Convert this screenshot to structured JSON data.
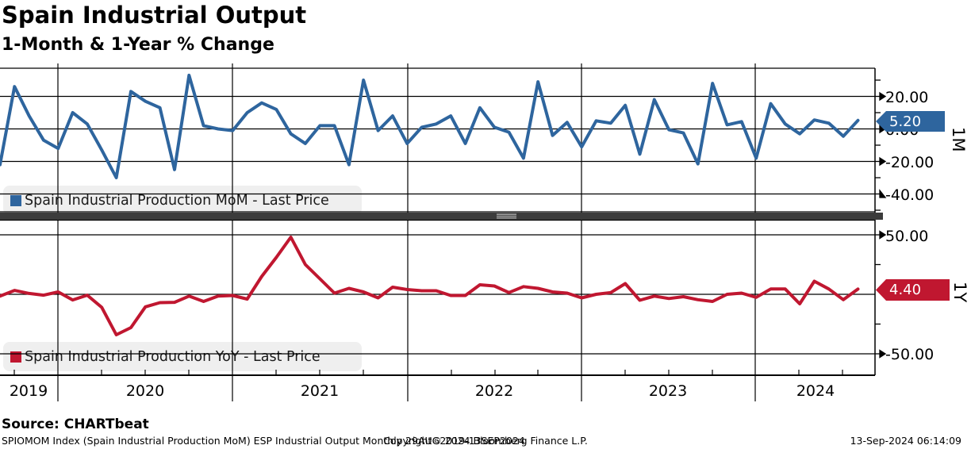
{
  "header": {
    "title": "Spain Industrial Output",
    "subtitle": "1-Month & 1-Year % Change"
  },
  "panels": {
    "top": {
      "axis_tag": "1M",
      "last_price_badge": "5.20",
      "legend": "Spain Industrial Production MoM - Last Price",
      "color": "#2e659e",
      "yticks": {
        "t0": "20.00",
        "t1": "0.00",
        "t2": "-20.00",
        "t3": "-40.00"
      }
    },
    "bottom": {
      "axis_tag": "1Y",
      "last_price_badge": "4.40",
      "legend": "Spain Industrial Production YoY - Last Price",
      "color": "#c01730",
      "yticks": {
        "t0": "50.00",
        "t1": "-50.00"
      }
    }
  },
  "xaxis": {
    "years": {
      "y2019": "2019",
      "y2020": "2020",
      "y2021": "2021",
      "y2022": "2022",
      "y2023": "2023",
      "y2024": "2024"
    }
  },
  "footer": {
    "source": "Source: CHARTbeat",
    "left": "SPIOMOM Index (Spain Industrial Production MoM) ESP Industrial Output  Monthly 29AUG2019-13SEP2024",
    "center": "Copyright© 2024 Bloomberg Finance L.P.",
    "right": "13-Sep-2024 06:14:09"
  },
  "chart_data": [
    {
      "type": "line",
      "name": "Spain Industrial Production MoM - Last Price",
      "panel": "top",
      "color": "#2e659e",
      "ylabel": "1M",
      "ylim": [
        -52,
        38
      ],
      "gridlines_y": [
        20,
        0,
        -20,
        -40
      ],
      "last_value": 5.2,
      "x": [
        "Sep-2019",
        "Oct-2019",
        "Nov-2019",
        "Dec-2019",
        "Jan-2020",
        "Feb-2020",
        "Mar-2020",
        "Apr-2020",
        "May-2020",
        "Jun-2020",
        "Jul-2020",
        "Aug-2020",
        "Sep-2020",
        "Oct-2020",
        "Nov-2020",
        "Dec-2020",
        "Jan-2021",
        "Feb-2021",
        "Mar-2021",
        "Apr-2021",
        "May-2021",
        "Jun-2021",
        "Jul-2021",
        "Aug-2021",
        "Sep-2021",
        "Oct-2021",
        "Nov-2021",
        "Dec-2021",
        "Jan-2022",
        "Feb-2022",
        "Mar-2022",
        "Apr-2022",
        "May-2022",
        "Jun-2022",
        "Jul-2022",
        "Aug-2022",
        "Sep-2022",
        "Oct-2022",
        "Nov-2022",
        "Dec-2022",
        "Jan-2023",
        "Feb-2023",
        "Mar-2023",
        "Apr-2023",
        "May-2023",
        "Jun-2023",
        "Jul-2023",
        "Aug-2023",
        "Sep-2023",
        "Oct-2023",
        "Nov-2023",
        "Dec-2023",
        "Jan-2024",
        "Feb-2024",
        "Mar-2024",
        "Apr-2024",
        "May-2024",
        "Jun-2024",
        "Jul-2024",
        "Aug-2024"
      ],
      "values": [
        -22,
        26,
        8,
        -7,
        -12,
        10,
        3,
        -13,
        -30,
        23,
        17,
        13,
        -25,
        33,
        2,
        0,
        -1,
        10,
        16,
        12,
        -3,
        -9,
        2,
        2,
        -22,
        30,
        -1,
        8,
        -9,
        1,
        3,
        8,
        -9,
        13,
        1,
        -2,
        -18,
        29,
        -4,
        4,
        -11,
        5,
        3.5,
        14.5,
        -15.5,
        18,
        -0.5,
        -2.5,
        -21.5,
        28,
        2.5,
        4.5,
        -18,
        15.5,
        3,
        -3,
        5.5,
        3.5,
        -4.5,
        5.2
      ]
    },
    {
      "type": "line",
      "name": "Spain Industrial Production YoY - Last Price",
      "panel": "bottom",
      "color": "#c01730",
      "ylabel": "1Y",
      "ylim": [
        -65,
        63
      ],
      "gridlines_y": [
        50,
        0,
        -50
      ],
      "last_value": 4.4,
      "x": [
        "Sep-2019",
        "Oct-2019",
        "Nov-2019",
        "Dec-2019",
        "Jan-2020",
        "Feb-2020",
        "Mar-2020",
        "Apr-2020",
        "May-2020",
        "Jun-2020",
        "Jul-2020",
        "Aug-2020",
        "Sep-2020",
        "Oct-2020",
        "Nov-2020",
        "Dec-2020",
        "Jan-2021",
        "Feb-2021",
        "Mar-2021",
        "Apr-2021",
        "May-2021",
        "Jun-2021",
        "Jul-2021",
        "Aug-2021",
        "Sep-2021",
        "Oct-2021",
        "Nov-2021",
        "Dec-2021",
        "Jan-2022",
        "Feb-2022",
        "Mar-2022",
        "Apr-2022",
        "May-2022",
        "Jun-2022",
        "Jul-2022",
        "Aug-2022",
        "Sep-2022",
        "Oct-2022",
        "Nov-2022",
        "Dec-2022",
        "Jan-2023",
        "Feb-2023",
        "Mar-2023",
        "Apr-2023",
        "May-2023",
        "Jun-2023",
        "Jul-2023",
        "Aug-2023",
        "Sep-2023",
        "Oct-2023",
        "Nov-2023",
        "Dec-2023",
        "Jan-2024",
        "Feb-2024",
        "Mar-2024",
        "Apr-2024",
        "May-2024",
        "Jun-2024",
        "Jul-2024",
        "Aug-2024"
      ],
      "values": [
        -1.5,
        3.3,
        0.7,
        -0.7,
        2,
        -4.7,
        -0.7,
        -11,
        -34,
        -28,
        -10.5,
        -7,
        -6.7,
        -1.5,
        -6,
        -1.5,
        -1,
        -4,
        15,
        31,
        48,
        25,
        13,
        1,
        5,
        2,
        -3,
        6,
        4,
        3,
        3,
        -1,
        -1,
        8,
        7,
        1.5,
        6.5,
        5,
        2,
        1,
        -3,
        0,
        1.5,
        9,
        -5,
        -1.5,
        -3.5,
        -2,
        -4.5,
        -6,
        0,
        1,
        -2.5,
        4.5,
        4.5,
        -8,
        11,
        4.5,
        -4.5,
        4.4
      ]
    }
  ]
}
